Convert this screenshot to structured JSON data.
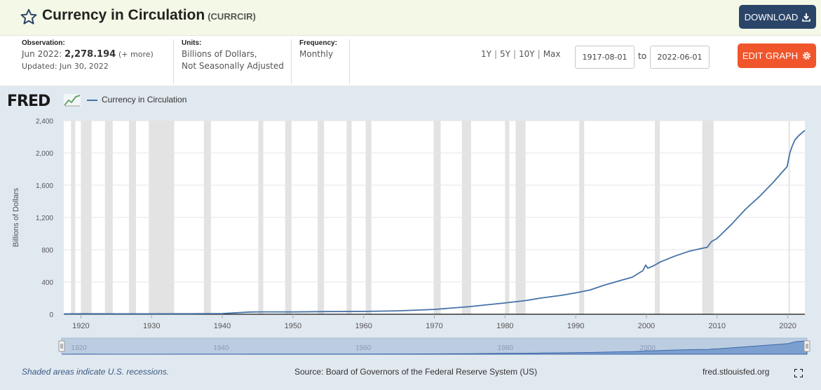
{
  "header": {
    "title": "Currency in Circulation",
    "series_id": "(CURRCIR)",
    "download_label": "DOWNLOAD"
  },
  "meta": {
    "observation_label": "Observation:",
    "observation_date": "Jun 2022:",
    "observation_value": "2,278.194",
    "observation_more": "(+ more)",
    "updated": "Updated: Jun 30, 2022",
    "units_label": "Units:",
    "units_line1": "Billions of Dollars,",
    "units_line2": "Not Seasonally Adjusted",
    "frequency_label": "Frequency:",
    "frequency": "Monthly"
  },
  "controls": {
    "ranges": [
      "1Y",
      "5Y",
      "10Y",
      "Max"
    ],
    "start_date": "1917-08-01",
    "to_label": "to",
    "end_date": "2022-06-01",
    "edit_label": "EDIT GRAPH"
  },
  "chart_panel": {
    "logo": "FRED",
    "footer_note": "Shaded areas indicate U.S. recessions.",
    "source": "Source: Board of Governors of the Federal Reserve System (US)",
    "url": "fred.stlouisfed.org"
  },
  "colors": {
    "series": "#4572a7",
    "recession": "#e3e3e3",
    "download": "#2b4569",
    "edit": "#f0552b"
  },
  "chart_data": {
    "type": "line",
    "ylabel": "Billions of Dollars",
    "ylim": [
      0,
      2400
    ],
    "yticks": [
      0,
      400,
      800,
      1200,
      1600,
      2000,
      2400
    ],
    "ytick_labels": [
      "0",
      "400",
      "800",
      "1,200",
      "1,600",
      "2,000",
      "2,400"
    ],
    "xlim": [
      1917.58,
      2022.42
    ],
    "xticks": [
      1920,
      1930,
      1940,
      1950,
      1960,
      1970,
      1980,
      1990,
      2000,
      2010,
      2020
    ],
    "xtick_labels": [
      "1920",
      "1930",
      "1940",
      "1950",
      "1960",
      "1970",
      "1980",
      "1990",
      "2000",
      "2010",
      "2020"
    ],
    "navigator_labels": [
      "1920",
      "1940",
      "1960",
      "1980",
      "2000"
    ],
    "grid": true,
    "legend": "top-left",
    "series": [
      {
        "name": "Currency in Circulation",
        "x": [
          1917.6,
          1920,
          1925,
          1930,
          1935,
          1940,
          1942,
          1944,
          1945.5,
          1950,
          1955,
          1960,
          1965,
          1970,
          1975,
          1980,
          1983,
          1985,
          1988,
          1990,
          1992,
          1994,
          1996,
          1998,
          1999.5,
          1999.9,
          2000.2,
          2001,
          2002,
          2004,
          2006,
          2008,
          2008.6,
          2009.2,
          2010,
          2012,
          2014,
          2016,
          2018,
          2019,
          2019.9,
          2020.3,
          2020.6,
          2021,
          2021.5,
          2022,
          2022.42
        ],
        "y": [
          4,
          6,
          5,
          5,
          6,
          9,
          18,
          28,
          30,
          29,
          33,
          35,
          43,
          60,
          95,
          140,
          170,
          200,
          235,
          265,
          300,
          360,
          410,
          460,
          540,
          610,
          570,
          600,
          650,
          720,
          780,
          820,
          830,
          900,
          940,
          1110,
          1300,
          1460,
          1640,
          1740,
          1830,
          2000,
          2080,
          2160,
          2210,
          2250,
          2278
        ]
      }
    ],
    "recessions": [
      [
        1918.6,
        1919.2
      ],
      [
        1920.0,
        1921.5
      ],
      [
        1923.4,
        1924.5
      ],
      [
        1926.8,
        1927.8
      ],
      [
        1929.6,
        1933.2
      ],
      [
        1937.4,
        1938.4
      ],
      [
        1945.1,
        1945.8
      ],
      [
        1948.9,
        1949.8
      ],
      [
        1953.5,
        1954.4
      ],
      [
        1957.6,
        1958.3
      ],
      [
        1960.3,
        1961.1
      ],
      [
        1969.9,
        1970.9
      ],
      [
        1973.9,
        1975.2
      ],
      [
        1980.0,
        1980.6
      ],
      [
        1981.5,
        1982.9
      ],
      [
        1990.5,
        1991.2
      ],
      [
        2001.2,
        2001.9
      ],
      [
        2007.9,
        2009.5
      ],
      [
        2020.1,
        2020.3
      ]
    ]
  }
}
